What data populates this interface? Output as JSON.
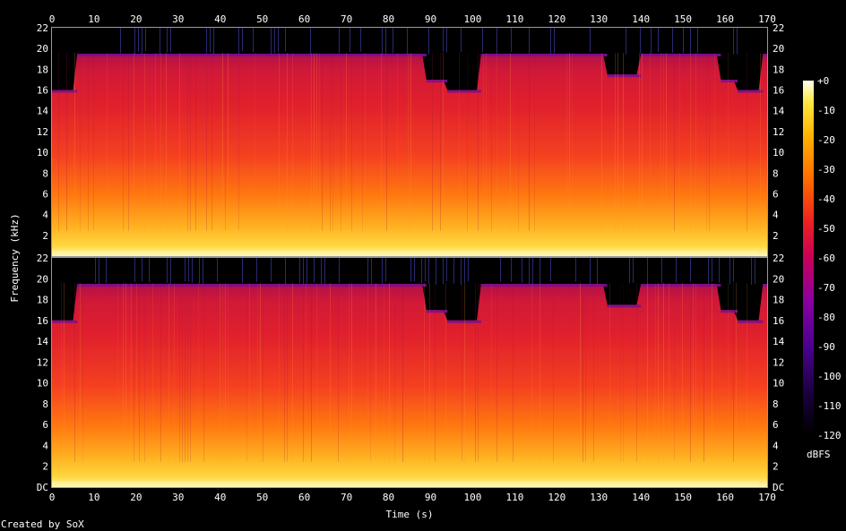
{
  "chart_data": {
    "type": "heatmap",
    "title": "",
    "xlabel": "Time (s)",
    "ylabel": "Frequency (kHz)",
    "x_ticks": [
      0,
      10,
      20,
      30,
      40,
      50,
      60,
      70,
      80,
      90,
      100,
      110,
      120,
      130,
      140,
      150,
      160,
      170
    ],
    "x_range": [
      0,
      170
    ],
    "channels": [
      {
        "y_ticks": [
          "22",
          "20",
          "18",
          "16",
          "14",
          "12",
          "10",
          "8",
          "6",
          "4",
          "2"
        ]
      },
      {
        "y_ticks": [
          "22",
          "20",
          "18",
          "16",
          "14",
          "12",
          "10",
          "8",
          "6",
          "4",
          "2",
          "DC"
        ]
      }
    ],
    "y_range_khz": [
      0,
      22
    ],
    "colorbar": {
      "label": "dBFS",
      "ticks": [
        "+0",
        "-10",
        "-20",
        "-30",
        "-40",
        "-50",
        "-60",
        "-70",
        "-80",
        "-90",
        "-100",
        "-110",
        "-120"
      ],
      "range": [
        -120,
        0
      ]
    },
    "bandwidth_profile": {
      "time_s": [
        0,
        5,
        6,
        88,
        89,
        93,
        94,
        101,
        102,
        131,
        132,
        139,
        140,
        158,
        159,
        162,
        163,
        168,
        169,
        170
      ],
      "cutoff_khz": [
        16,
        16,
        19.5,
        19.5,
        17,
        17,
        16,
        16,
        19.5,
        19.5,
        17.5,
        17.5,
        19.5,
        19.5,
        17,
        17,
        16,
        16,
        19.5,
        19.5
      ]
    },
    "colors": {
      "scale": [
        "#000000",
        "#1a0040",
        "#4b0090",
        "#8a00a0",
        "#c8005a",
        "#ee2020",
        "#ff6a00",
        "#ffb000",
        "#ffe840",
        "#fffff0"
      ]
    }
  },
  "footer": {
    "credit": "Created by SoX"
  }
}
